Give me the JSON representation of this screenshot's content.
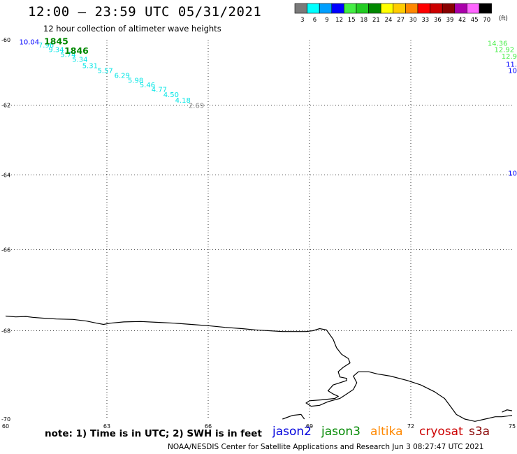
{
  "header": {
    "title": "12:00 – 23:59 UTC 05/31/2021",
    "subtitle": "12 hour collection of altimeter wave heights"
  },
  "colorbar": {
    "unit": "(ft)",
    "swatches": [
      {
        "color": "#7a7a7a",
        "label": "3"
      },
      {
        "color": "#00ffff",
        "label": "6"
      },
      {
        "color": "#009fff",
        "label": "9"
      },
      {
        "color": "#0000ff",
        "label": "12"
      },
      {
        "color": "#44ee44",
        "label": "15"
      },
      {
        "color": "#22cc22",
        "label": "18"
      },
      {
        "color": "#008800",
        "label": "21"
      },
      {
        "color": "#ffff00",
        "label": "24"
      },
      {
        "color": "#ffcc00",
        "label": "27"
      },
      {
        "color": "#ff8800",
        "label": "30"
      },
      {
        "color": "#ff0000",
        "label": "33"
      },
      {
        "color": "#cc0000",
        "label": "36"
      },
      {
        "color": "#880000",
        "label": "39"
      },
      {
        "color": "#aa00aa",
        "label": "42"
      },
      {
        "color": "#ff66ff",
        "label": "45"
      },
      {
        "color": "#000000",
        "label": "70"
      }
    ]
  },
  "map": {
    "lon_range": [
      60,
      75
    ],
    "lat_range": [
      -70,
      -60
    ],
    "lat_ticks": [
      {
        "value": -60,
        "label": "-60"
      },
      {
        "value": -62,
        "label": "-62"
      },
      {
        "value": -64,
        "label": "-64"
      },
      {
        "value": -66,
        "label": "-66"
      },
      {
        "value": -68,
        "label": "-68"
      },
      {
        "value": -70,
        "label": "-70"
      }
    ],
    "lon_ticks": [
      {
        "value": 60,
        "label": "60"
      },
      {
        "value": 63,
        "label": "63"
      },
      {
        "value": 66,
        "label": "66"
      },
      {
        "value": 69,
        "label": "69"
      },
      {
        "value": 72,
        "label": "72"
      },
      {
        "value": 75,
        "label": "75"
      }
    ],
    "track_labels": [
      {
        "text": "1845",
        "lon": 61.5,
        "lat": -60.05,
        "color": "#008800",
        "bold": true
      },
      {
        "text": "1846",
        "lon": 62.1,
        "lat": -60.35,
        "color": "#008800",
        "bold": true
      }
    ],
    "wave_heights": [
      {
        "text": "10.04",
        "lon": 60.7,
        "lat": -60.05,
        "color": "#0000ff"
      },
      {
        "text": "7.96",
        "lon": 61.2,
        "lat": -60.15,
        "color": "#00e5e5"
      },
      {
        "text": "9.34",
        "lon": 61.5,
        "lat": -60.3,
        "color": "#00e5e5"
      },
      {
        "text": "5.74",
        "lon": 61.85,
        "lat": -60.45,
        "color": "#00e5e5"
      },
      {
        "text": "5.34",
        "lon": 62.2,
        "lat": -60.6,
        "color": "#00e5e5"
      },
      {
        "text": "5.31",
        "lon": 62.5,
        "lat": -60.8,
        "color": "#00e5e5"
      },
      {
        "text": "5.57",
        "lon": 62.95,
        "lat": -60.95,
        "color": "#00e5e5"
      },
      {
        "text": "6.29",
        "lon": 63.45,
        "lat": -61.1,
        "color": "#00e5e5"
      },
      {
        "text": "5.98",
        "lon": 63.85,
        "lat": -61.25,
        "color": "#00e5e5"
      },
      {
        "text": "5.46",
        "lon": 64.2,
        "lat": -61.38,
        "color": "#00e5e5"
      },
      {
        "text": "4.77",
        "lon": 64.55,
        "lat": -61.52,
        "color": "#00e5e5"
      },
      {
        "text": "4.50",
        "lon": 64.9,
        "lat": -61.68,
        "color": "#00e5e5"
      },
      {
        "text": "4.18",
        "lon": 65.25,
        "lat": -61.85,
        "color": "#00e5e5"
      },
      {
        "text": "2.69",
        "lon": 65.65,
        "lat": -62.0,
        "color": "#888888"
      },
      {
        "text": "14.36",
        "lon": 74.7,
        "lat": -60.1,
        "color": "#44ee44"
      },
      {
        "text": "12.92",
        "lon": 74.9,
        "lat": -60.3,
        "color": "#44ee44"
      },
      {
        "text": "12.9",
        "lon": 75.0,
        "lat": -60.5,
        "color": "#44ee44"
      },
      {
        "text": "11.",
        "lon": 75.0,
        "lat": -60.75,
        "color": "#0000ff"
      },
      {
        "text": "10",
        "lon": 75.0,
        "lat": -60.95,
        "color": "#0000ff"
      },
      {
        "text": "10",
        "lon": 75.0,
        "lat": -63.95,
        "color": "#0000ff"
      }
    ],
    "coastline": [
      [
        [
          60.0,
          -67.65
        ],
        [
          60.3,
          -67.67
        ],
        [
          60.6,
          -67.66
        ],
        [
          60.8,
          -67.68
        ],
        [
          61.1,
          -67.7
        ],
        [
          61.5,
          -67.72
        ],
        [
          62.0,
          -67.73
        ],
        [
          62.4,
          -67.77
        ],
        [
          62.7,
          -67.82
        ],
        [
          62.9,
          -67.85
        ],
        [
          63.1,
          -67.82
        ],
        [
          63.5,
          -67.79
        ],
        [
          64.0,
          -67.78
        ],
        [
          64.5,
          -67.8
        ],
        [
          65.0,
          -67.82
        ],
        [
          65.5,
          -67.85
        ],
        [
          66.0,
          -67.88
        ],
        [
          66.5,
          -67.92
        ],
        [
          67.0,
          -67.95
        ],
        [
          67.4,
          -67.98
        ],
        [
          67.8,
          -68.0
        ],
        [
          68.2,
          -68.02
        ],
        [
          68.5,
          -68.02
        ],
        [
          68.9,
          -68.02
        ],
        [
          69.1,
          -68.0
        ],
        [
          69.3,
          -67.95
        ],
        [
          69.5,
          -67.98
        ],
        [
          69.7,
          -68.2
        ],
        [
          69.8,
          -68.4
        ],
        [
          69.95,
          -68.55
        ],
        [
          70.15,
          -68.65
        ],
        [
          70.2,
          -68.75
        ],
        [
          70.0,
          -68.85
        ],
        [
          69.85,
          -68.95
        ],
        [
          69.9,
          -69.07
        ],
        [
          70.1,
          -69.1
        ],
        [
          70.1,
          -69.15
        ],
        [
          69.7,
          -69.25
        ],
        [
          69.55,
          -69.38
        ],
        [
          69.7,
          -69.45
        ],
        [
          69.85,
          -69.5
        ],
        [
          69.75,
          -69.55
        ],
        [
          69.35,
          -69.58
        ],
        [
          69.0,
          -69.6
        ],
        [
          68.9,
          -69.65
        ],
        [
          69.05,
          -69.72
        ],
        [
          69.3,
          -69.7
        ],
        [
          69.55,
          -69.62
        ],
        [
          69.9,
          -69.55
        ],
        [
          70.1,
          -69.45
        ],
        [
          70.3,
          -69.35
        ],
        [
          70.4,
          -69.2
        ],
        [
          70.3,
          -69.05
        ],
        [
          70.45,
          -68.95
        ],
        [
          70.75,
          -68.95
        ],
        [
          71.0,
          -69.0
        ],
        [
          71.4,
          -69.05
        ],
        [
          71.9,
          -69.15
        ],
        [
          72.3,
          -69.25
        ],
        [
          72.7,
          -69.4
        ],
        [
          73.0,
          -69.55
        ],
        [
          73.2,
          -69.75
        ],
        [
          73.35,
          -69.9
        ],
        [
          73.6,
          -70.0
        ],
        [
          73.9,
          -70.05
        ],
        [
          74.2,
          -70.0
        ],
        [
          74.5,
          -69.95
        ],
        [
          74.7,
          -69.95
        ],
        [
          75.0,
          -69.92
        ]
      ],
      [
        [
          68.2,
          -70.0
        ],
        [
          68.5,
          -69.92
        ],
        [
          68.75,
          -69.9
        ],
        [
          68.85,
          -70.0
        ]
      ],
      [
        [
          74.7,
          -69.85
        ],
        [
          74.85,
          -69.8
        ],
        [
          75.0,
          -69.82
        ]
      ]
    ]
  },
  "footer": {
    "note": "note: 1) Time is in UTC; 2) SWH is in feet",
    "satellites": [
      {
        "name": "jason2",
        "color": "#0000dd"
      },
      {
        "name": "jason3",
        "color": "#008800"
      },
      {
        "name": "altika",
        "color": "#ff8800"
      },
      {
        "name": "cryosat",
        "color": "#cc0000"
      },
      {
        "name": "s3a",
        "color": "#880000"
      }
    ],
    "credit": "NOAA/NESDIS Center for Satellite Applications and Research   Jun  3 08:27:47 UTC 2021"
  }
}
